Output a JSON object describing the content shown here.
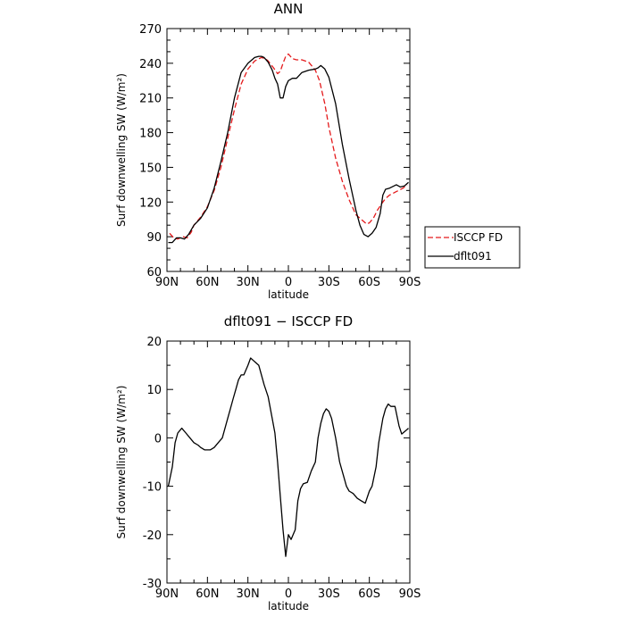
{
  "chart_data": [
    {
      "type": "line",
      "title": "ANN",
      "xlabel": "latitude",
      "ylabel": "Surf downwelling SW (W/m²)",
      "xlim": [
        90,
        -90
      ],
      "ylim": [
        60,
        270
      ],
      "xticks": [
        90,
        60,
        30,
        0,
        -30,
        -60,
        -90
      ],
      "xtick_labels": [
        "90N",
        "60N",
        "30N",
        "0",
        "30S",
        "60S",
        "90S"
      ],
      "yticks": [
        60,
        90,
        120,
        150,
        180,
        210,
        240,
        270
      ],
      "legend": "right-outside",
      "series": [
        {
          "name": "ISCCP FD",
          "color": "#e41a1c",
          "style": "dashed",
          "x": [
            88,
            85,
            82,
            78,
            75,
            72,
            70,
            65,
            60,
            55,
            50,
            45,
            40,
            35,
            30,
            25,
            20,
            17,
            15,
            13,
            11,
            8,
            6,
            4,
            2,
            0,
            -3,
            -6,
            -10,
            -15,
            -20,
            -23,
            -27,
            -30,
            -35,
            -40,
            -45,
            -50,
            -55,
            -58,
            -60,
            -63,
            -66,
            -70,
            -72,
            -75,
            -80,
            -85,
            -88
          ],
          "y": [
            93,
            89,
            88,
            90,
            89,
            94,
            100,
            107,
            116,
            130,
            150,
            175,
            200,
            222,
            235,
            242,
            245,
            244,
            242,
            239,
            236,
            231,
            233,
            240,
            246,
            248,
            244,
            243,
            243,
            241,
            234,
            225,
            205,
            185,
            158,
            138,
            122,
            109,
            104,
            101,
            102,
            106,
            113,
            120,
            123,
            126,
            129,
            132,
            135
          ]
        },
        {
          "name": "dflt091",
          "color": "#000000",
          "style": "solid",
          "x": [
            89,
            86,
            83,
            80,
            77,
            74,
            70,
            65,
            60,
            55,
            50,
            45,
            40,
            35,
            30,
            25,
            22,
            20,
            18,
            15,
            12,
            10,
            8,
            6,
            4,
            2,
            0,
            -3,
            -6,
            -10,
            -15,
            -20,
            -22,
            -24,
            -27,
            -30,
            -35,
            -40,
            -45,
            -50,
            -53,
            -56,
            -59,
            -62,
            -65,
            -68,
            -70,
            -72,
            -75,
            -80,
            -83,
            -86,
            -89
          ],
          "y": [
            85,
            85,
            89,
            89,
            88,
            92,
            100,
            106,
            115,
            132,
            155,
            180,
            210,
            232,
            240,
            245,
            246,
            246,
            245,
            241,
            234,
            227,
            222,
            210,
            210,
            220,
            225,
            227,
            227,
            232,
            234,
            235,
            236,
            238,
            235,
            228,
            205,
            170,
            140,
            113,
            100,
            92,
            90,
            93,
            98,
            110,
            126,
            131,
            132,
            135,
            133,
            134,
            137
          ]
        }
      ]
    },
    {
      "type": "line",
      "title": "dflt091 − ISCCP FD",
      "xlabel": "latitude",
      "ylabel": "Surf downwelling SW (W/m²)",
      "xlim": [
        90,
        -90
      ],
      "ylim": [
        -30,
        20
      ],
      "xticks": [
        90,
        60,
        30,
        0,
        -30,
        -60,
        -90
      ],
      "xtick_labels": [
        "90N",
        "60N",
        "30N",
        "0",
        "30S",
        "60S",
        "90S"
      ],
      "yticks": [
        -30,
        -20,
        -10,
        0,
        10,
        20
      ],
      "series": [
        {
          "color": "#000000",
          "style": "solid",
          "x": [
            89,
            86,
            84,
            82,
            79,
            76,
            73,
            70,
            67,
            65,
            62,
            58,
            55,
            52,
            49,
            47,
            45,
            43,
            41,
            39,
            37,
            35,
            33,
            30,
            28,
            26,
            24,
            22,
            20,
            18,
            15,
            12,
            10,
            8,
            6,
            4,
            2,
            0,
            -2,
            -5,
            -7,
            -9,
            -11,
            -14,
            -17,
            -20,
            -22,
            -24,
            -26,
            -28,
            -30,
            -32,
            -35,
            -38,
            -41,
            -43,
            -45,
            -48,
            -51,
            -54,
            -57,
            -60,
            -62,
            -65,
            -67,
            -70,
            -72,
            -74,
            -76,
            -79,
            -82,
            -84,
            -87,
            -89
          ],
          "y": [
            -10,
            -6,
            -1,
            1,
            2,
            1,
            0,
            -1,
            -1.5,
            -2,
            -2.5,
            -2.5,
            -2,
            -1,
            0,
            2,
            4,
            6,
            8,
            10,
            12,
            13,
            13,
            15,
            16.5,
            16,
            15.5,
            15,
            13,
            11,
            8.5,
            4,
            1,
            -5,
            -12,
            -19,
            -24.5,
            -20,
            -21,
            -19,
            -13,
            -10.5,
            -9.5,
            -9.2,
            -6.8,
            -5,
            0,
            3,
            5,
            6,
            5.5,
            4,
            0,
            -5,
            -8,
            -10,
            -11,
            -11.5,
            -12.5,
            -13,
            -13.5,
            -11,
            -10,
            -6,
            -1,
            4,
            6,
            7,
            6.5,
            6.5,
            2.5,
            0.8,
            1.5,
            2
          ]
        }
      ]
    }
  ]
}
